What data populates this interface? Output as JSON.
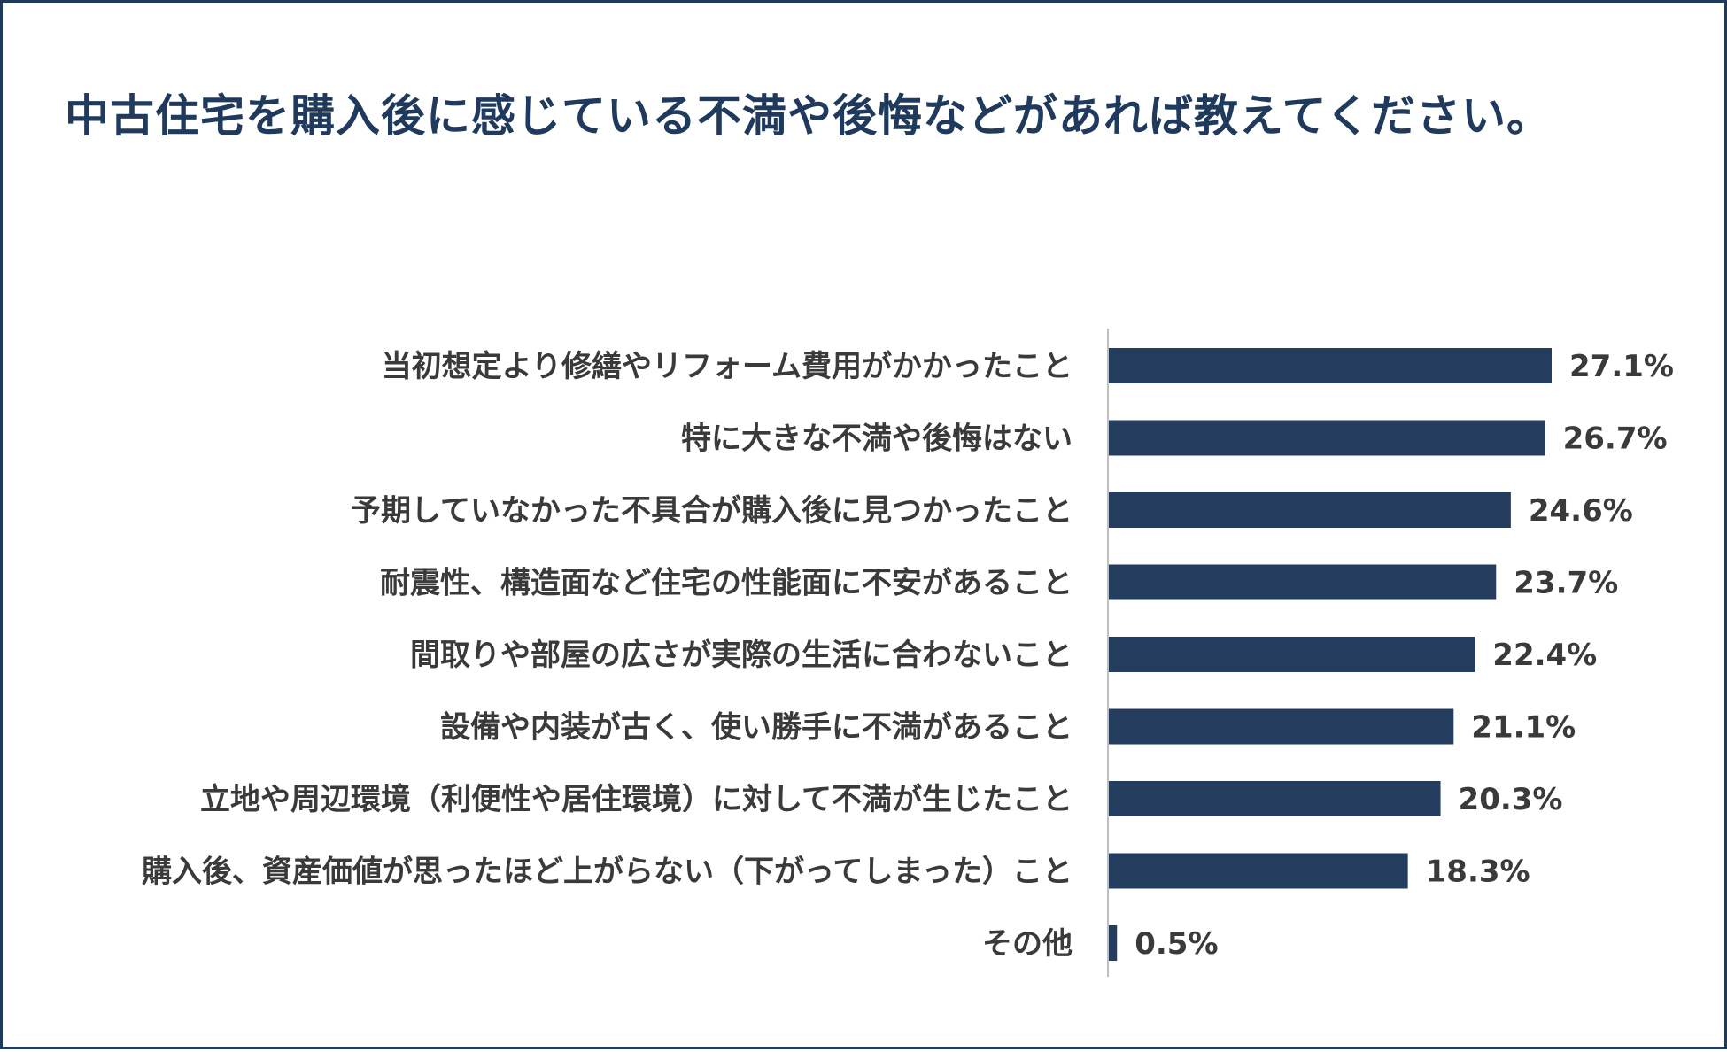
{
  "chart_data": {
    "type": "bar",
    "orientation": "horizontal",
    "title": "中古住宅を購入後に感じている不満や後悔などがあれば教えてください。",
    "categories": [
      "当初想定より修繕やリフォーム費用がかかったこと",
      "特に大きな不満や後悔はない",
      "予期していなかった不具合が購入後に見つかったこと",
      "耐震性、構造面など住宅の性能面に不安があること",
      "間取りや部屋の広さが実際の生活に合わないこと",
      "設備や内装が古く、使い勝手に不満があること",
      "立地や周辺環境（利便性や居住環境）に対して不満が生じたこと",
      "購入後、資産価値が思ったほど上がらない（下がってしまった）こと",
      "その他"
    ],
    "values": [
      27.1,
      26.7,
      24.6,
      23.7,
      22.4,
      21.1,
      20.3,
      18.3,
      0.5
    ],
    "value_labels": [
      "27.1%",
      "26.7%",
      "24.6%",
      "23.7%",
      "22.4%",
      "21.1%",
      "20.3%",
      "18.3%",
      "0.5%"
    ],
    "unit": "%",
    "xlim": [
      0,
      30
    ],
    "grid": false,
    "legend": "none",
    "colors": {
      "bar": "#243d5e",
      "axis": "#bfbfbf",
      "frame": "#1f3a5c",
      "title": "#1f3a5c"
    }
  }
}
